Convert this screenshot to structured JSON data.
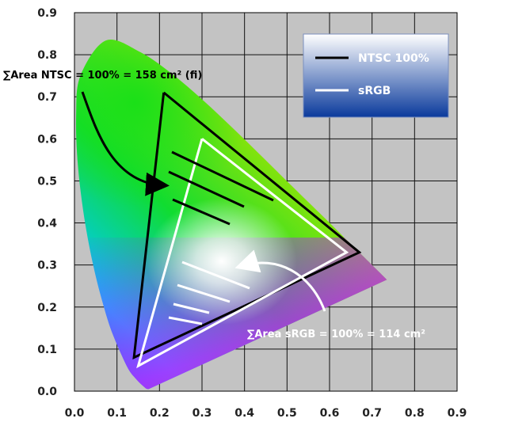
{
  "chart_data": {
    "type": "scatter",
    "title": "",
    "xlabel": "",
    "ylabel": "",
    "xlim": [
      0,
      0.9
    ],
    "ylim": [
      0,
      0.9
    ],
    "x_ticks": [
      "0.0",
      "0.1",
      "0.2",
      "0.3",
      "0.4",
      "0.5",
      "0.6",
      "0.7",
      "0.8",
      "0.9"
    ],
    "y_ticks": [
      "0.0",
      "0.1",
      "0.2",
      "0.3",
      "0.4",
      "0.5",
      "0.6",
      "0.7",
      "0.8",
      "0.9"
    ],
    "grid": true,
    "legend_position": "top-right",
    "series": [
      {
        "name": "NTSC 100%",
        "color": "#000000",
        "x": [
          0.21,
          0.67,
          0.14,
          0.21
        ],
        "y": [
          0.71,
          0.33,
          0.08,
          0.71
        ]
      },
      {
        "name": "sRGB",
        "color": "#ffffff",
        "x": [
          0.3,
          0.64,
          0.15,
          0.3
        ],
        "y": [
          0.6,
          0.33,
          0.06,
          0.6
        ]
      }
    ],
    "spectral_locus": {
      "x": [
        0.175,
        0.172,
        0.165,
        0.144,
        0.124,
        0.091,
        0.069,
        0.045,
        0.023,
        0.008,
        0.004,
        0.014,
        0.074,
        0.155,
        0.23,
        0.302,
        0.374,
        0.444,
        0.512,
        0.575,
        0.627,
        0.666,
        0.692,
        0.735
      ],
      "y": [
        0.005,
        0.005,
        0.009,
        0.03,
        0.058,
        0.133,
        0.201,
        0.295,
        0.413,
        0.538,
        0.655,
        0.75,
        0.834,
        0.806,
        0.754,
        0.692,
        0.624,
        0.555,
        0.487,
        0.425,
        0.373,
        0.334,
        0.308,
        0.265
      ]
    },
    "annotations": [
      {
        "text": "∑Area NTSC = 100% = 158 cm² (fi)",
        "color": "#000000"
      },
      {
        "text": "∑Area sRGB = 100% = 114 cm²",
        "color": "#ffffff"
      }
    ],
    "legend_background": [
      "#ffffff",
      "#0a3a9c"
    ]
  }
}
